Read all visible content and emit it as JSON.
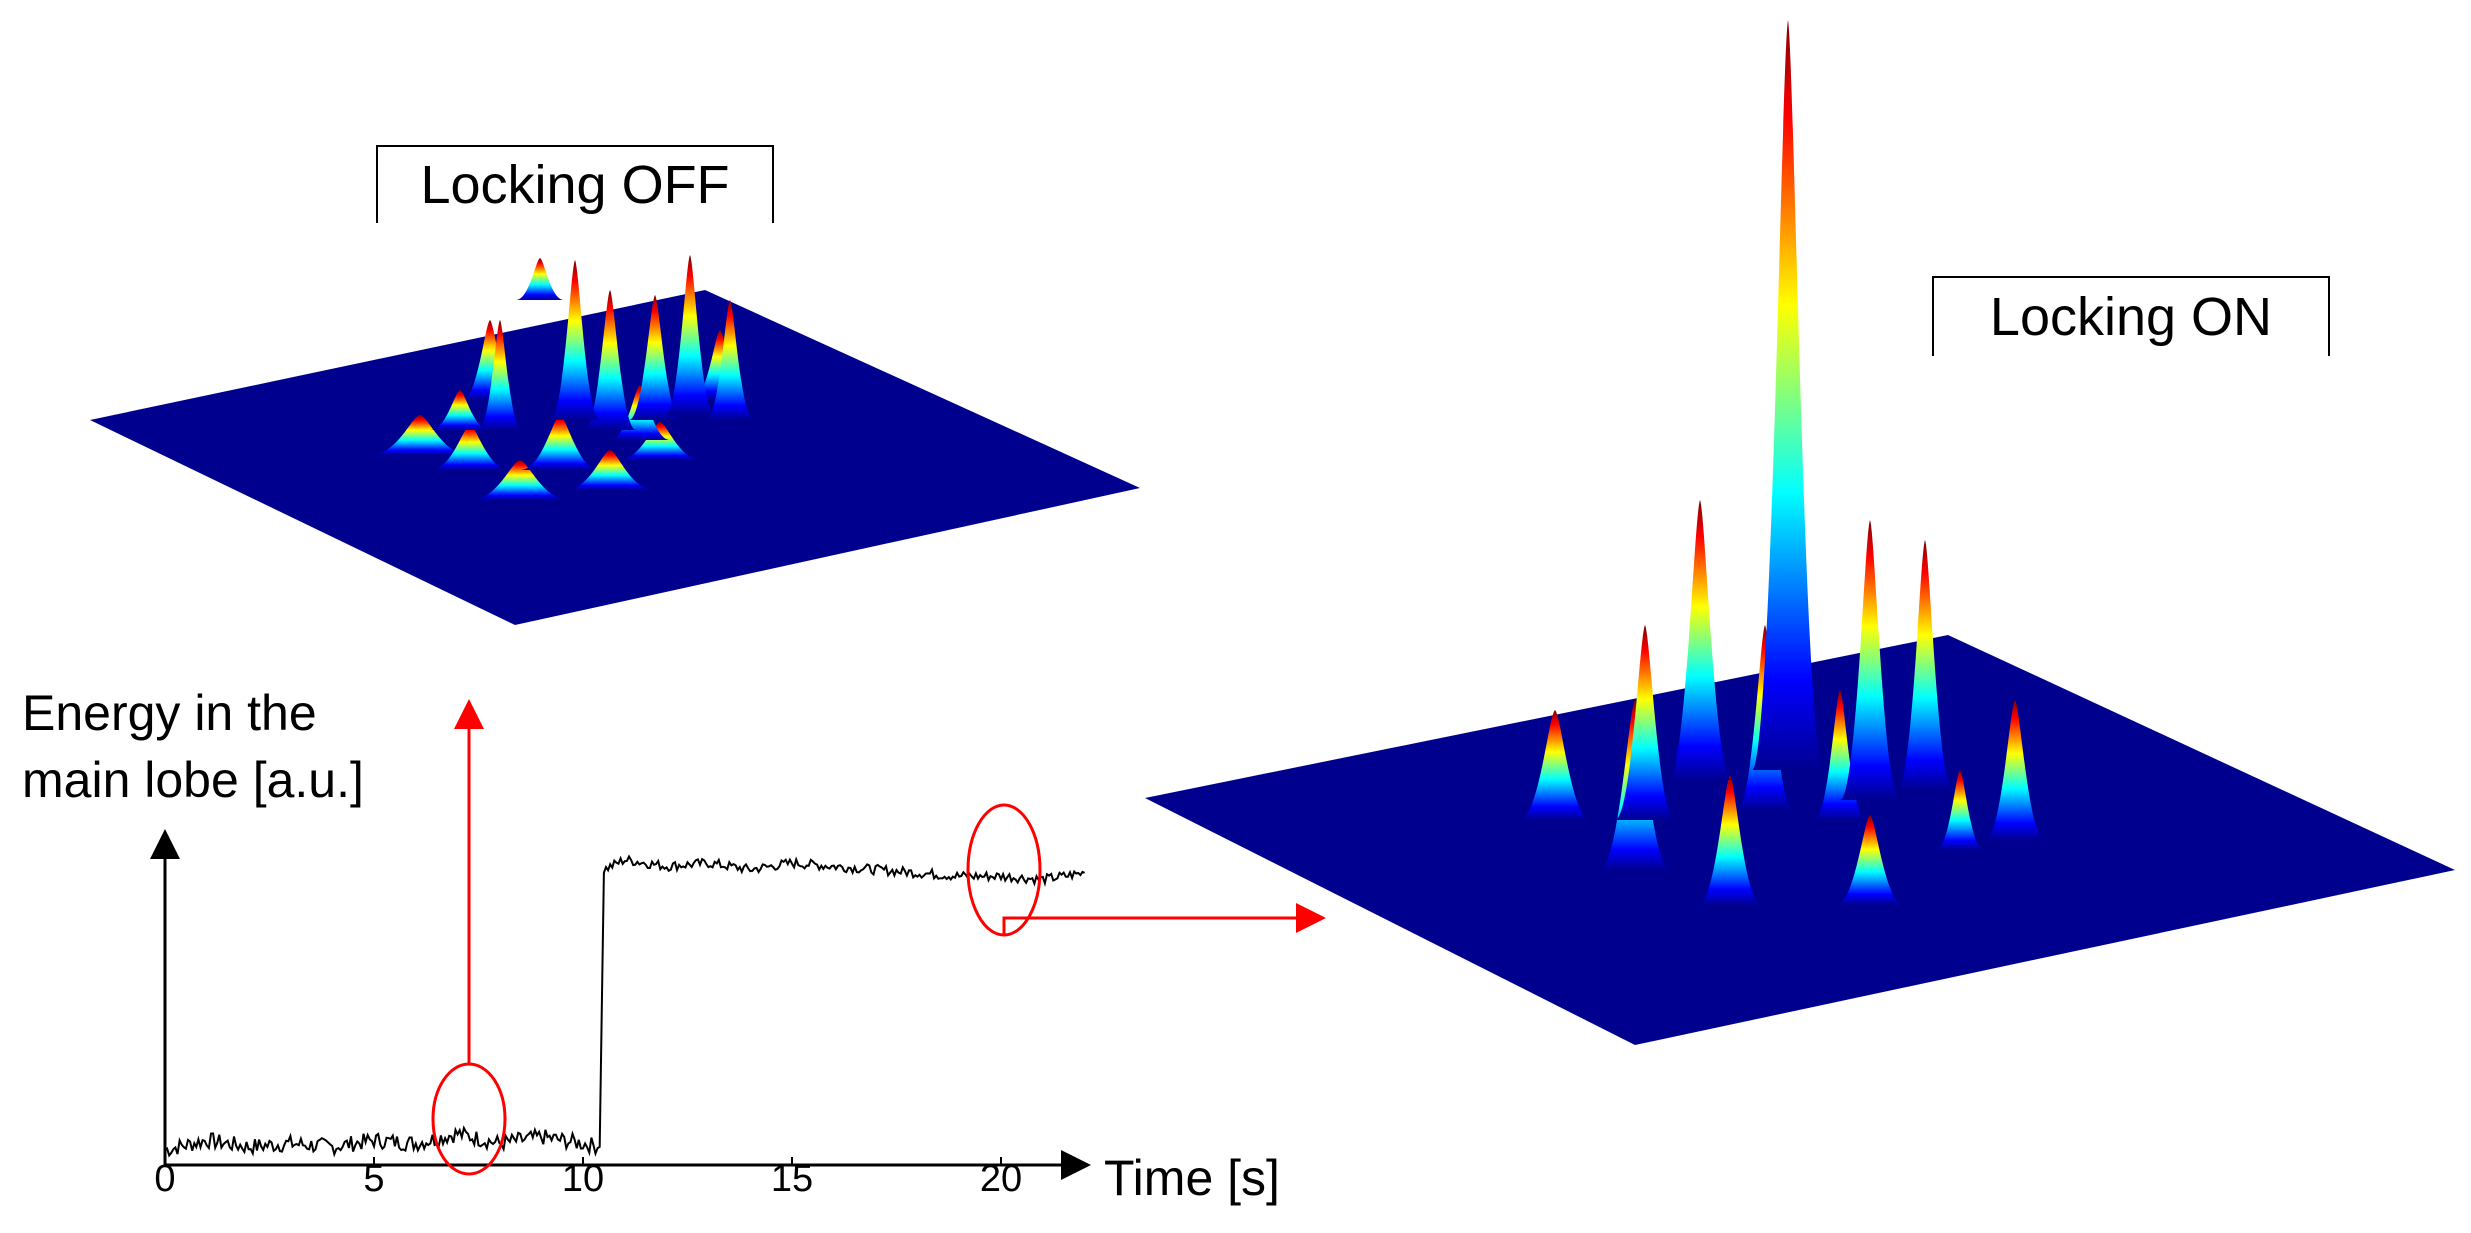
{
  "panel_off": {
    "label": "Locking OFF"
  },
  "panel_on": {
    "label": "Locking ON"
  },
  "trace": {
    "ylabel_line1": "Energy in the",
    "ylabel_line2": "main lobe [a.u.]",
    "xlabel": "Time [s]",
    "x_ticks": [
      "0",
      "5",
      "10",
      "15",
      "20"
    ]
  },
  "chart_data": {
    "type": "line",
    "x_ticks": [
      0,
      5,
      10,
      15,
      20
    ],
    "xlim": [
      0,
      22
    ],
    "series": [
      {
        "values_description_points": [
          [
            0,
            0.03
          ],
          [
            1,
            0.06
          ],
          [
            2,
            0.04
          ],
          [
            3,
            0.05
          ],
          [
            4,
            0.04
          ],
          [
            5,
            0.06
          ],
          [
            6,
            0.05
          ],
          [
            7,
            0.08
          ],
          [
            8,
            0.05
          ],
          [
            9,
            0.07
          ],
          [
            10,
            0.05
          ],
          [
            10.4,
            0.04
          ],
          [
            10.5,
            0.88
          ],
          [
            11,
            0.91
          ],
          [
            12,
            0.89
          ],
          [
            13,
            0.9
          ],
          [
            14,
            0.88
          ],
          [
            15,
            0.9
          ],
          [
            16,
            0.89
          ],
          [
            17,
            0.88
          ],
          [
            18,
            0.87
          ],
          [
            19,
            0.86
          ],
          [
            20,
            0.86
          ],
          [
            21,
            0.85
          ],
          [
            22,
            0.87
          ]
        ]
      }
    ]
  },
  "colors": {
    "arrow": "#ff0000",
    "surface_low": "#00008f",
    "surface_high": "#800000"
  }
}
